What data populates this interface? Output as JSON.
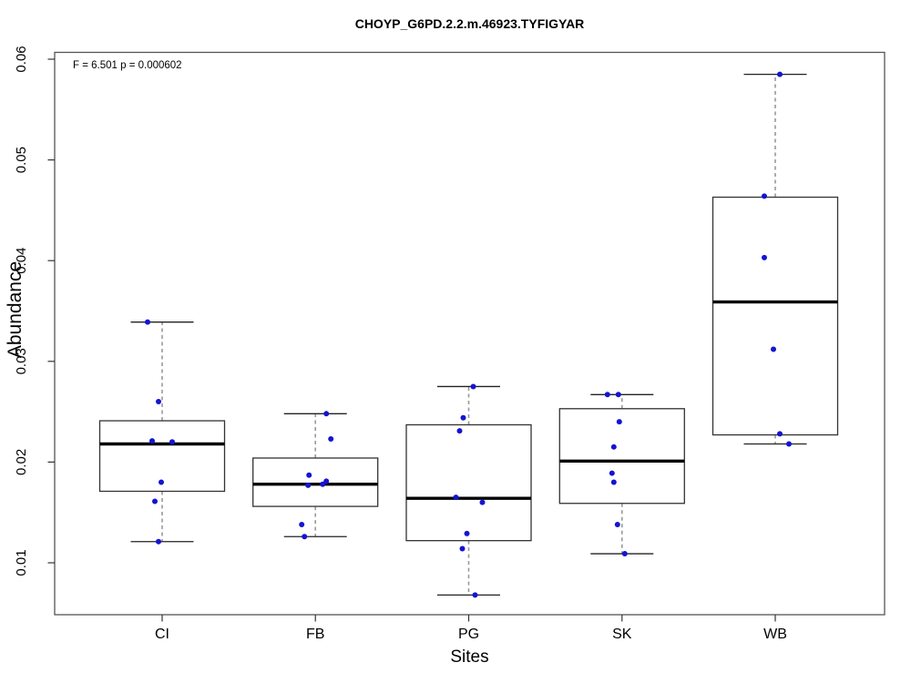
{
  "chart_data": {
    "type": "boxplot",
    "title": "CHOYP_G6PD.2.2.m.46923.TYFIGYAR",
    "annotation": "F = 6.501 p = 0.000602",
    "xlabel": "Sites",
    "ylabel": "Abundance",
    "categories": [
      "CI",
      "FB",
      "PG",
      "SK",
      "WB"
    ],
    "yticks": [
      0.01,
      0.02,
      0.03,
      0.04,
      0.05,
      0.06
    ],
    "ylim": [
      0.005,
      0.0605
    ],
    "grid": "off",
    "legend": "none",
    "colors": {
      "point": "#1414d2",
      "box_fill": "#ffffff",
      "box_border": "#333333",
      "median": "#000000",
      "whisker_dash": "#999999",
      "whisker_cap": "#222222",
      "plot_border": "#555555",
      "text": "#000000"
    },
    "groups": [
      {
        "label": "CI",
        "min": 0.0121,
        "q1": 0.0171,
        "median": 0.0218,
        "q3": 0.0241,
        "max": 0.0339,
        "points": [
          {
            "v": 0.0339,
            "dx": -16
          },
          {
            "v": 0.026,
            "dx": -4
          },
          {
            "v": 0.0221,
            "dx": -11
          },
          {
            "v": 0.022,
            "dx": 11
          },
          {
            "v": 0.018,
            "dx": -1
          },
          {
            "v": 0.0161,
            "dx": -8
          },
          {
            "v": 0.0121,
            "dx": -4
          }
        ]
      },
      {
        "label": "FB",
        "min": 0.0126,
        "q1": 0.0156,
        "median": 0.0178,
        "q3": 0.0204,
        "max": 0.0248,
        "points": [
          {
            "v": 0.0248,
            "dx": 12
          },
          {
            "v": 0.0223,
            "dx": 17
          },
          {
            "v": 0.0187,
            "dx": -7
          },
          {
            "v": 0.0181,
            "dx": 12
          },
          {
            "v": 0.0178,
            "dx": 8
          },
          {
            "v": 0.0177,
            "dx": -8
          },
          {
            "v": 0.0138,
            "dx": -15
          },
          {
            "v": 0.0126,
            "dx": -12
          }
        ]
      },
      {
        "label": "PG",
        "min": 0.0068,
        "q1": 0.0122,
        "median": 0.0164,
        "q3": 0.0237,
        "max": 0.0275,
        "points": [
          {
            "v": 0.0275,
            "dx": 5
          },
          {
            "v": 0.0244,
            "dx": -6
          },
          {
            "v": 0.0231,
            "dx": -10
          },
          {
            "v": 0.0165,
            "dx": -14
          },
          {
            "v": 0.016,
            "dx": 15
          },
          {
            "v": 0.0129,
            "dx": -2
          },
          {
            "v": 0.0114,
            "dx": -7
          },
          {
            "v": 0.0068,
            "dx": 7
          }
        ]
      },
      {
        "label": "SK",
        "min": 0.0109,
        "q1": 0.0159,
        "median": 0.0201,
        "q3": 0.0253,
        "max": 0.0267,
        "points": [
          {
            "v": 0.0267,
            "dx": -16
          },
          {
            "v": 0.0267,
            "dx": -4
          },
          {
            "v": 0.024,
            "dx": -3
          },
          {
            "v": 0.0215,
            "dx": -9
          },
          {
            "v": 0.0189,
            "dx": -11
          },
          {
            "v": 0.018,
            "dx": -9
          },
          {
            "v": 0.0138,
            "dx": -5
          },
          {
            "v": 0.0109,
            "dx": 3
          }
        ]
      },
      {
        "label": "WB",
        "min": 0.0218,
        "q1": 0.0227,
        "median": 0.0359,
        "q3": 0.0463,
        "max": 0.0585,
        "points": [
          {
            "v": 0.0585,
            "dx": 5
          },
          {
            "v": 0.0464,
            "dx": -12
          },
          {
            "v": 0.0403,
            "dx": -12
          },
          {
            "v": 0.0312,
            "dx": -2
          },
          {
            "v": 0.0228,
            "dx": 5
          },
          {
            "v": 0.0218,
            "dx": 15
          }
        ]
      }
    ]
  }
}
